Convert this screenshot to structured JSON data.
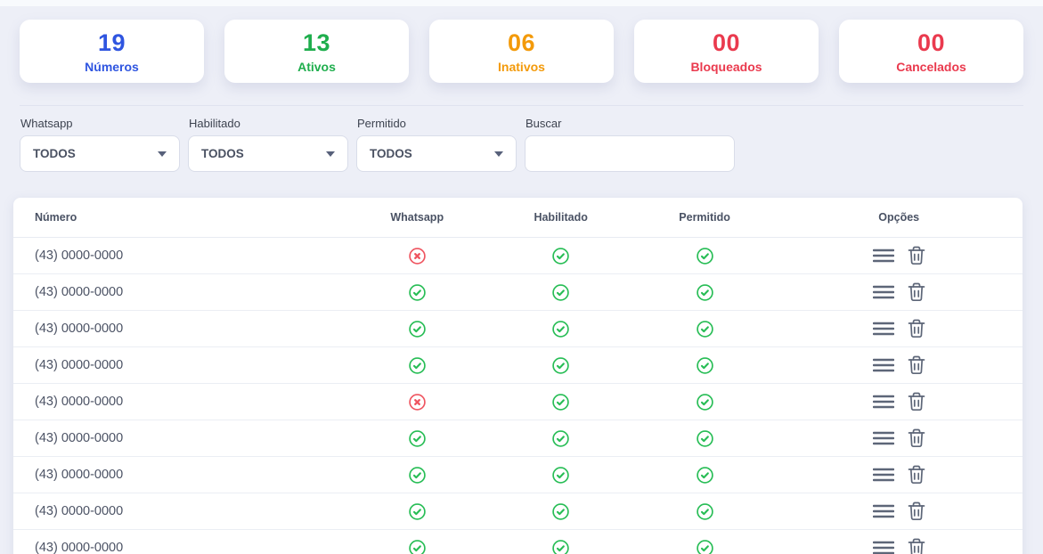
{
  "cards": [
    {
      "value": "19",
      "label": "Números",
      "color": "#2f55e0"
    },
    {
      "value": "13",
      "label": "Ativos",
      "color": "#1fae4d"
    },
    {
      "value": "06",
      "label": "Inativos",
      "color": "#f39a0a"
    },
    {
      "value": "00",
      "label": "Bloqueados",
      "color": "#ea3a4e"
    },
    {
      "value": "00",
      "label": "Cancelados",
      "color": "#ea3a4e"
    }
  ],
  "filters": {
    "whatsapp": {
      "label": "Whatsapp",
      "value": "TODOS"
    },
    "habilitado": {
      "label": "Habilitado",
      "value": "TODOS"
    },
    "permitido": {
      "label": "Permitido",
      "value": "TODOS"
    },
    "search": {
      "label": "Buscar",
      "value": ""
    }
  },
  "table": {
    "columns": [
      "Número",
      "Whatsapp",
      "Habilitado",
      "Permitido",
      "Opções"
    ],
    "status_colors": {
      "active": "#27bd55",
      "inactive": "#ef5560"
    },
    "icon_color_options": "#5d6678",
    "rows": [
      {
        "numero": "(43) 0000-0000",
        "whatsapp": "inactive",
        "habilitado": "active",
        "permitido": "active"
      },
      {
        "numero": "(43) 0000-0000",
        "whatsapp": "active",
        "habilitado": "active",
        "permitido": "active"
      },
      {
        "numero": "(43) 0000-0000",
        "whatsapp": "active",
        "habilitado": "active",
        "permitido": "active"
      },
      {
        "numero": "(43) 0000-0000",
        "whatsapp": "active",
        "habilitado": "active",
        "permitido": "active"
      },
      {
        "numero": "(43) 0000-0000",
        "whatsapp": "inactive",
        "habilitado": "active",
        "permitido": "active"
      },
      {
        "numero": "(43) 0000-0000",
        "whatsapp": "active",
        "habilitado": "active",
        "permitido": "active"
      },
      {
        "numero": "(43) 0000-0000",
        "whatsapp": "active",
        "habilitado": "active",
        "permitido": "active"
      },
      {
        "numero": "(43) 0000-0000",
        "whatsapp": "active",
        "habilitado": "active",
        "permitido": "active"
      },
      {
        "numero": "(43) 0000-0000",
        "whatsapp": "active",
        "habilitado": "active",
        "permitido": "active"
      }
    ]
  }
}
